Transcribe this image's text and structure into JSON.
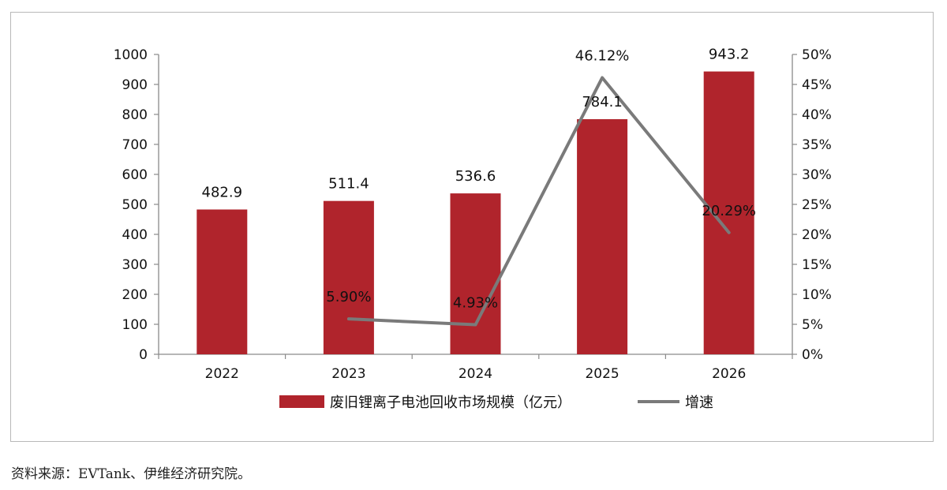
{
  "chart_data": {
    "type": "bar",
    "categories": [
      "2022",
      "2023",
      "2024",
      "2025",
      "2026"
    ],
    "series": [
      {
        "name": "废旧锂离子电池回收市场规模（亿元）",
        "type": "bar",
        "axis": "left",
        "values": [
          482.9,
          511.4,
          536.6,
          784.1,
          943.2
        ],
        "labels": [
          "482.9",
          "511.4",
          "536.6",
          "784.1",
          "943.2"
        ],
        "color": "#b0242c"
      },
      {
        "name": "增速",
        "type": "line",
        "axis": "right",
        "values": [
          null,
          5.9,
          4.93,
          46.12,
          20.29
        ],
        "labels": [
          "",
          "5.90%",
          "4.93%",
          "46.12%",
          "20.29%"
        ],
        "color": "#7a7a7a"
      }
    ],
    "ylim": [
      0,
      1000
    ],
    "yticks": [
      "0",
      "100",
      "200",
      "300",
      "400",
      "500",
      "600",
      "700",
      "800",
      "900",
      "1000"
    ],
    "y2lim": [
      0,
      50
    ],
    "y2ticks": [
      "0%",
      "5%",
      "10%",
      "15%",
      "20%",
      "25%",
      "30%",
      "35%",
      "40%",
      "45%",
      "50%"
    ],
    "grid": false,
    "legend_position": "bottom"
  },
  "source_note": "资料来源：EVTank、伊维经济研究院。"
}
